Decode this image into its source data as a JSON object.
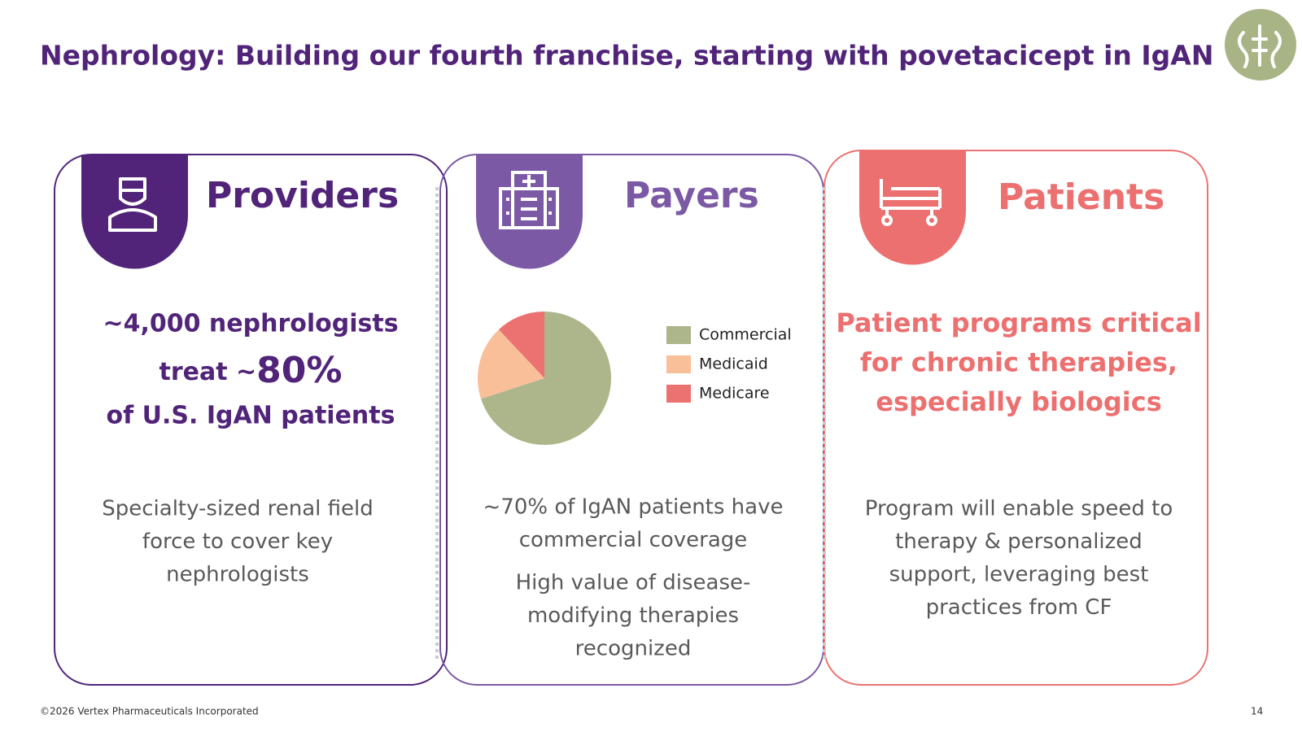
{
  "header": {
    "title": "Nephrology: Building our fourth franchise, starting with povetacicept in IgAN"
  },
  "cards": [
    {
      "heading": "Providers",
      "highlight": {
        "line1": "~4,000 nephrologists",
        "line2a": "treat ~",
        "line2b": "80%",
        "line3": "of U.S. IgAN patients"
      },
      "body": [
        [
          "Specialty-sized renal field",
          "force to cover key",
          "nephrologists"
        ]
      ]
    },
    {
      "heading": "Payers",
      "body": [
        [
          "~70% of IgAN patients have",
          "commercial coverage"
        ],
        [
          "High value of disease-",
          "modifying therapies",
          "recognized"
        ]
      ]
    },
    {
      "heading": "Patients",
      "highlight": {
        "lines": [
          "Patient programs critical",
          "for chronic therapies,",
          "especially biologics"
        ]
      },
      "body": [
        [
          "Program will enable speed to",
          "therapy & personalized",
          "support, leveraging best",
          "practices from CF"
        ]
      ]
    }
  ],
  "chart_data": {
    "type": "pie",
    "categories": [
      "Commercial",
      "Medicaid",
      "Medicare"
    ],
    "values": [
      70,
      18,
      12
    ],
    "colors": [
      "#adb68a",
      "#f8bf99",
      "#ec7272"
    ],
    "legend": "right"
  },
  "footer": {
    "copyright": "©2026 Vertex Pharmaceuticals Incorporated",
    "page": "14"
  }
}
